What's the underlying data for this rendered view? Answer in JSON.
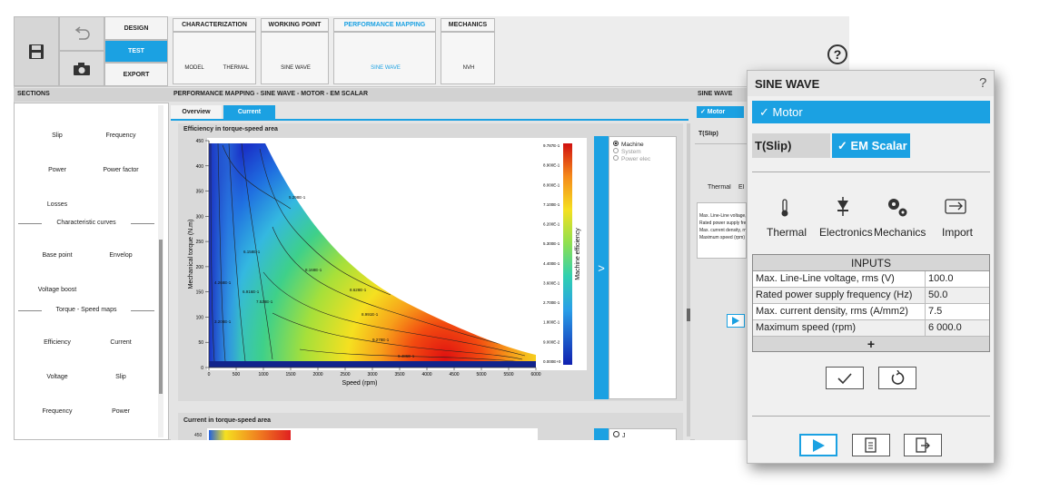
{
  "toolbar": {
    "mode_buttons": [
      "DESIGN",
      "TEST",
      "EXPORT"
    ],
    "tabs": [
      {
        "title": "CHARACTERIZATION",
        "items": [
          "MODEL",
          "THERMAL"
        ]
      },
      {
        "title": "WORKING POINT",
        "items": [
          "SINE WAVE"
        ]
      },
      {
        "title": "PERFORMANCE MAPPING",
        "items": [
          "SINE WAVE"
        ]
      },
      {
        "title": "MECHANICS",
        "items": [
          "NVH"
        ]
      }
    ],
    "help": "?"
  },
  "sections": {
    "title": "SECTIONS",
    "items": [
      "Slip",
      "Frequency",
      "Power",
      "Power factor",
      "Losses"
    ],
    "groups": [
      {
        "title": "Characteristic curves",
        "items": [
          "Base point",
          "Envelop",
          "Voltage boost"
        ]
      },
      {
        "title": "Torque - Speed maps",
        "items": [
          "Efficiency",
          "Current",
          "Voltage",
          "Slip",
          "Frequency",
          "Power"
        ]
      }
    ]
  },
  "main": {
    "breadcrumb": "PERFORMANCE MAPPING - SINE WAVE - MOTOR - EM SCALAR",
    "view_tabs": [
      "Overview",
      "Current"
    ],
    "expand": ">",
    "plots": [
      {
        "title": "Efficiency in torque-speed area",
        "y_label": "Mechanical torque (N.m)",
        "x_label": "Speed (rpm)",
        "y_ticks": [
          "0",
          "50",
          "100",
          "150",
          "200",
          "250",
          "300",
          "350",
          "400",
          "450"
        ],
        "x_ticks": [
          "0",
          "500",
          "1000",
          "1500",
          "2000",
          "2500",
          "3000",
          "3500",
          "4000",
          "4500",
          "5000",
          "5500",
          "6000"
        ],
        "colorbar_label": "Machine efficiency",
        "colorbar_ticks": [
          "9.787E-1",
          "8.900E-1",
          "8.000E-1",
          "7.100E-1",
          "6.200E-1",
          "5.300E-1",
          "4.400E-1",
          "3.600E-1",
          "2.700E-1",
          "1.800E-1",
          "9.000E-2",
          "0.000E+0"
        ],
        "contour_labels": [
          "5.298E-1",
          "6.158E-1",
          "8.168E-1",
          "4.268E-1",
          "6.916E-1",
          "7.528E-1",
          "8.628E-1",
          "3.208E-1",
          "8.991E-1",
          "9.278E-1",
          "9.486E-1"
        ],
        "legend": [
          "Machine",
          "System",
          "Power elec"
        ]
      },
      {
        "title": "Current in torque-speed area",
        "y_ticks": [
          "450"
        ],
        "legend": [
          "J"
        ]
      }
    ]
  },
  "side_panel": {
    "title": "SINE WAVE",
    "motor": "✓ Motor",
    "model": "T(Slip)",
    "tool": "Thermal",
    "tool_partial": "El"
  },
  "dialog": {
    "title": "SINE WAVE",
    "help": "?",
    "motor": "✓ Motor",
    "model_buttons": [
      "T(Slip)",
      "✓ EM Scalar"
    ],
    "tools": [
      "Thermal",
      "Electronics",
      "Mechanics",
      "Import"
    ],
    "inputs": {
      "title": "INPUTS",
      "rows": [
        [
          "Max. Line-Line voltage, rms (V)",
          "100.0"
        ],
        [
          "Rated power supply frequency (Hz)",
          "50.0"
        ],
        [
          "Max. current density, rms (A/mm2)",
          "7.5"
        ],
        [
          "Maximum speed (rpm)",
          "6 000.0"
        ]
      ],
      "add": "+"
    }
  }
}
